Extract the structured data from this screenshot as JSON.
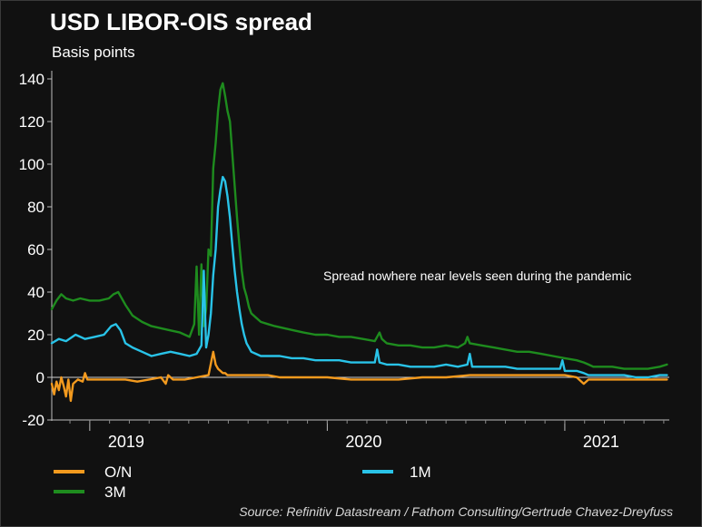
{
  "chart_data": {
    "type": "line",
    "title": "USD LIBOR-OIS spread",
    "subtitle": "Basis points",
    "ylabel": "",
    "xlabel": "",
    "ylim": [
      -20,
      140
    ],
    "yticks": [
      -20,
      0,
      20,
      40,
      60,
      80,
      100,
      120,
      140
    ],
    "xlim": [
      2018.84,
      2021.44
    ],
    "xticks": [
      {
        "label": "2019",
        "pos": 2019.0
      },
      {
        "label": "2020",
        "pos": 2020.0
      },
      {
        "label": "2021",
        "pos": 2021.0
      }
    ],
    "year_dividers": [
      2019.0,
      2020.0,
      2021.0
    ],
    "grid": false,
    "legend_position": "bottom",
    "annotation": "Spread nowhere near levels seen during the pandemic",
    "source": "Source: Refinitiv Datastream / Fathom Consulting/Gertrude Chavez-Dreyfuss",
    "zero_line": true,
    "series": [
      {
        "name": "3M",
        "color": "#1e8c1e",
        "x": [
          2018.84,
          2018.86,
          2018.88,
          2018.9,
          2018.93,
          2018.96,
          2019.0,
          2019.04,
          2019.08,
          2019.1,
          2019.12,
          2019.15,
          2019.18,
          2019.22,
          2019.26,
          2019.3,
          2019.34,
          2019.38,
          2019.42,
          2019.44,
          2019.45,
          2019.46,
          2019.47,
          2019.48,
          2019.49,
          2019.5,
          2019.51,
          2019.52,
          2019.53,
          2019.54,
          2019.55,
          2019.56,
          2019.57,
          2019.58,
          2019.59,
          2019.6,
          2019.61,
          2019.62,
          2019.63,
          2019.64,
          2019.65,
          2019.66,
          2019.67,
          2019.68,
          2019.7,
          2019.72,
          2019.75,
          2019.78,
          2019.82,
          2019.86,
          2019.9,
          2019.95,
          2020.0,
          2020.05,
          2020.1,
          2020.15,
          2020.2,
          2020.22,
          2020.23,
          2020.25,
          2020.3,
          2020.35,
          2020.4,
          2020.45,
          2020.5,
          2020.55,
          2020.58,
          2020.59,
          2020.6,
          2020.65,
          2020.7,
          2020.75,
          2020.8,
          2020.85,
          2020.9,
          2020.95,
          2021.0,
          2021.05,
          2021.08,
          2021.1,
          2021.12,
          2021.15,
          2021.2,
          2021.25,
          2021.3,
          2021.35,
          2021.4,
          2021.43
        ],
        "y": [
          32,
          36,
          39,
          37,
          36,
          37,
          36,
          36,
          37,
          39,
          40,
          34,
          29,
          26,
          24,
          23,
          22,
          21,
          19,
          25,
          52,
          20,
          53,
          24,
          32,
          60,
          57,
          98,
          110,
          125,
          135,
          138,
          132,
          125,
          120,
          105,
          90,
          75,
          62,
          50,
          42,
          38,
          33,
          30,
          28,
          26,
          25,
          24,
          23,
          22,
          21,
          20,
          20,
          19,
          19,
          18,
          17,
          21,
          18,
          16,
          15,
          15,
          14,
          14,
          15,
          14,
          16,
          19,
          16,
          15,
          14,
          13,
          12,
          12,
          11,
          10,
          9,
          8,
          7,
          6,
          5,
          5,
          5,
          4,
          4,
          4,
          5,
          6
        ]
      },
      {
        "name": "1M",
        "color": "#29c3e8",
        "x": [
          2018.84,
          2018.87,
          2018.9,
          2018.94,
          2018.98,
          2019.02,
          2019.06,
          2019.09,
          2019.11,
          2019.13,
          2019.15,
          2019.18,
          2019.22,
          2019.26,
          2019.3,
          2019.34,
          2019.38,
          2019.42,
          2019.45,
          2019.47,
          2019.48,
          2019.49,
          2019.5,
          2019.51,
          2019.52,
          2019.53,
          2019.54,
          2019.55,
          2019.56,
          2019.57,
          2019.58,
          2019.59,
          2019.6,
          2019.61,
          2019.62,
          2019.63,
          2019.64,
          2019.65,
          2019.66,
          2019.67,
          2019.68,
          2019.7,
          2019.72,
          2019.75,
          2019.8,
          2019.85,
          2019.9,
          2019.95,
          2020.0,
          2020.05,
          2020.1,
          2020.15,
          2020.2,
          2020.21,
          2020.22,
          2020.25,
          2020.3,
          2020.35,
          2020.4,
          2020.45,
          2020.5,
          2020.55,
          2020.59,
          2020.6,
          2020.61,
          2020.65,
          2020.7,
          2020.75,
          2020.8,
          2020.85,
          2020.9,
          2020.95,
          2020.98,
          2020.99,
          2021.0,
          2021.05,
          2021.08,
          2021.1,
          2021.15,
          2021.2,
          2021.25,
          2021.3,
          2021.35,
          2021.4,
          2021.43
        ],
        "y": [
          16,
          18,
          17,
          20,
          18,
          19,
          20,
          24,
          25,
          22,
          16,
          14,
          12,
          10,
          11,
          12,
          11,
          10,
          11,
          15,
          50,
          14,
          20,
          30,
          48,
          60,
          80,
          88,
          94,
          92,
          85,
          75,
          62,
          50,
          40,
          32,
          25,
          20,
          16,
          14,
          12,
          11,
          10,
          10,
          10,
          9,
          9,
          8,
          8,
          8,
          7,
          7,
          7,
          13,
          7,
          6,
          6,
          5,
          5,
          5,
          6,
          5,
          6,
          11,
          5,
          5,
          5,
          5,
          4,
          4,
          4,
          4,
          4,
          8,
          3,
          3,
          2,
          1,
          1,
          1,
          1,
          0,
          0,
          1,
          1
        ]
      },
      {
        "name": "O/N",
        "color": "#f39a1e",
        "x": [
          2018.84,
          2018.85,
          2018.86,
          2018.87,
          2018.88,
          2018.89,
          2018.9,
          2018.91,
          2018.92,
          2018.93,
          2018.95,
          2018.97,
          2018.98,
          2018.99,
          2019.0,
          2019.05,
          2019.1,
          2019.15,
          2019.2,
          2019.25,
          2019.3,
          2019.32,
          2019.33,
          2019.35,
          2019.4,
          2019.45,
          2019.5,
          2019.52,
          2019.53,
          2019.54,
          2019.55,
          2019.56,
          2019.57,
          2019.58,
          2019.6,
          2019.65,
          2019.7,
          2019.75,
          2019.8,
          2019.85,
          2019.9,
          2019.95,
          2020.0,
          2020.1,
          2020.2,
          2020.3,
          2020.4,
          2020.5,
          2020.6,
          2020.7,
          2020.8,
          2020.9,
          2021.0,
          2021.05,
          2021.08,
          2021.1,
          2021.15,
          2021.2,
          2021.25,
          2021.3,
          2021.35,
          2021.4,
          2021.43
        ],
        "y": [
          -3,
          -8,
          -2,
          -6,
          0,
          -4,
          -9,
          -1,
          -11,
          -3,
          -1,
          -2,
          2,
          -1,
          -1,
          -1,
          -1,
          -1,
          -2,
          -1,
          0,
          -3,
          1,
          -1,
          -1,
          0,
          1,
          12,
          6,
          4,
          3,
          2,
          2,
          1,
          1,
          1,
          1,
          1,
          0,
          0,
          0,
          0,
          0,
          -1,
          -1,
          -1,
          0,
          0,
          1,
          1,
          1,
          1,
          1,
          0,
          -3,
          -1,
          -1,
          -1,
          -1,
          -1,
          -1,
          -1,
          -1
        ]
      }
    ]
  },
  "legend": [
    {
      "label": "O/N",
      "color": "#f39a1e"
    },
    {
      "label": "1M",
      "color": "#29c3e8"
    },
    {
      "label": "3M",
      "color": "#1e8c1e"
    }
  ]
}
